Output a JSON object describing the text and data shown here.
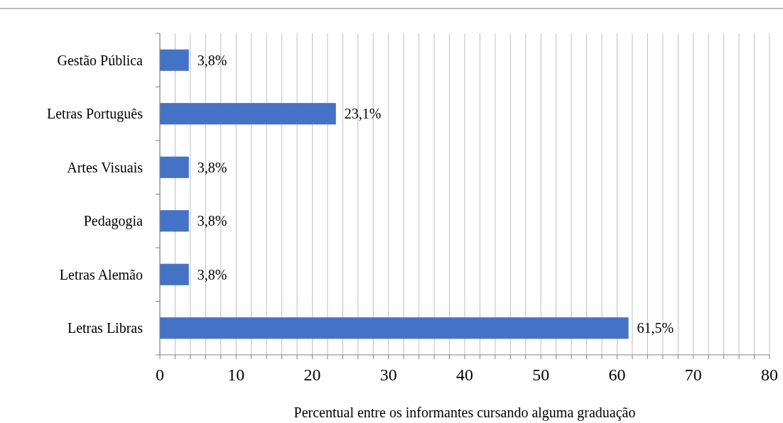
{
  "chart_data": {
    "type": "bar",
    "orientation": "horizontal",
    "xlabel": "Percentual entre os informantes cursando alguma graduação",
    "categories": [
      "Gestão Pública",
      "Letras Português",
      "Artes Visuais",
      "Pedagogia",
      "Letras Alemão",
      "Letras Libras"
    ],
    "values": [
      3.8,
      23.1,
      3.8,
      3.8,
      3.8,
      61.5
    ],
    "value_labels": [
      "3,8%",
      "23,1%",
      "3,8%",
      "3,8%",
      "3,8%",
      "61,5%"
    ],
    "color": "#4472c4",
    "xlim": [
      0,
      80
    ],
    "xticks": [
      0,
      {
        "value": 2,
        "label": null
      },
      {
        "value": 4,
        "label": null
      },
      {
        "value": 6,
        "label": null
      },
      {
        "value": 8,
        "label": null
      },
      10,
      {
        "value": 12,
        "label": null
      },
      {
        "value": 14,
        "label": null
      },
      {
        "value": 16,
        "label": null
      },
      {
        "value": 18,
        "label": null
      },
      20,
      {
        "value": 22,
        "label": null
      },
      {
        "value": 24,
        "label": null
      },
      {
        "value": 26,
        "label": null
      },
      {
        "value": 28,
        "label": null
      },
      30,
      {
        "value": 32,
        "label": null
      },
      {
        "value": 34,
        "label": null
      },
      {
        "value": 36,
        "label": null
      },
      {
        "value": 38,
        "label": null
      },
      40,
      {
        "value": 42,
        "label": null
      },
      {
        "value": 44,
        "label": null
      },
      {
        "value": 46,
        "label": null
      },
      {
        "value": 48,
        "label": null
      },
      50,
      {
        "value": 52,
        "label": null
      },
      {
        "value": 54,
        "label": null
      },
      {
        "value": 56,
        "label": null
      },
      {
        "value": 58,
        "label": null
      },
      60,
      {
        "value": 62,
        "label": null
      },
      {
        "value": 64,
        "label": null
      },
      {
        "value": 66,
        "label": null
      },
      {
        "value": 68,
        "label": null
      },
      70,
      {
        "value": 72,
        "label": null
      },
      {
        "value": 74,
        "label": null
      },
      {
        "value": 76,
        "label": null
      },
      {
        "value": 78,
        "label": null
      },
      80
    ],
    "grid": "x"
  }
}
